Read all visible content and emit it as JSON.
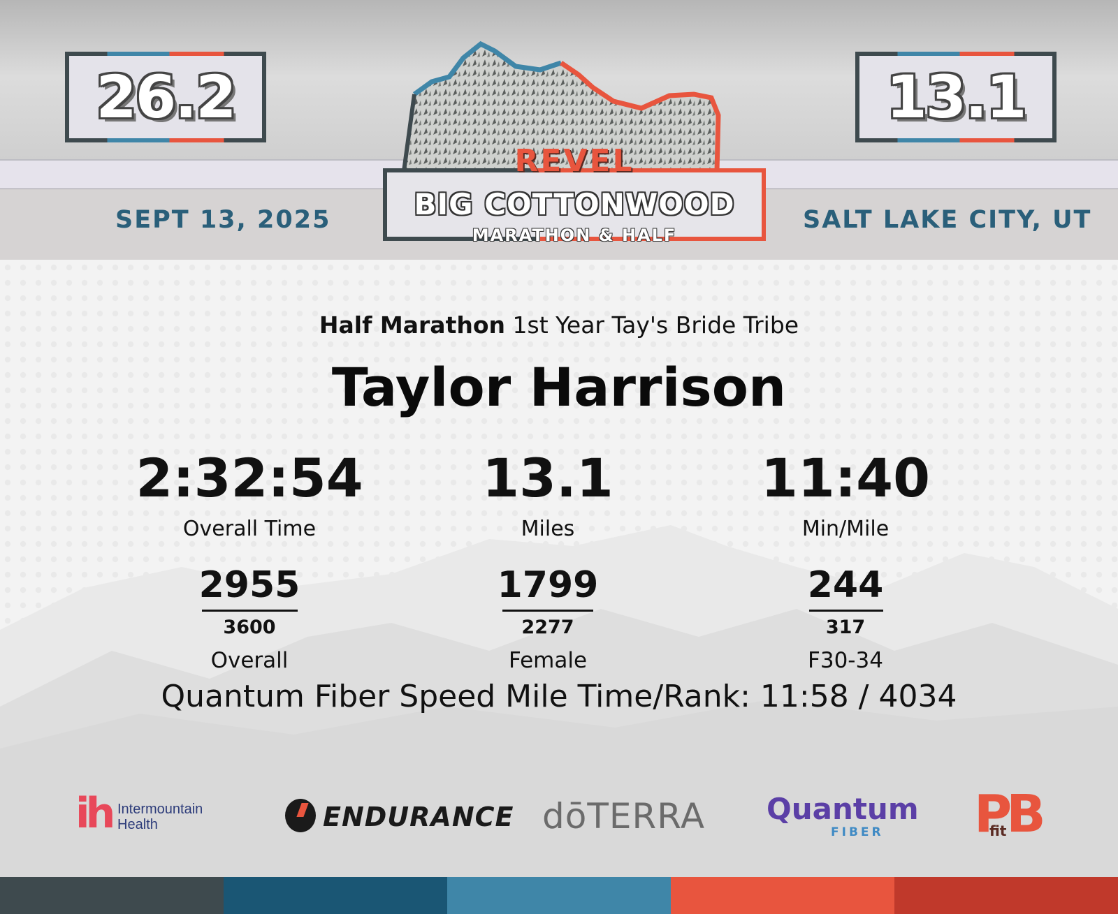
{
  "header": {
    "badge_left": "26.2",
    "badge_right": "13.1",
    "date": "SEPT 13, 2025",
    "location": "SALT LAKE CITY, UT"
  },
  "logo": {
    "brand": "REVEL",
    "race_name": "BIG COTTONWOOD",
    "subtitle": "MARATHON & HALF"
  },
  "result": {
    "event": "Half Marathon",
    "team": "1st Year Tay's Bride Tribe",
    "runner_name": "Taylor Harrison",
    "stats": [
      {
        "value": "2:32:54",
        "label": "Overall Time"
      },
      {
        "value": "13.1",
        "label": "Miles"
      },
      {
        "value": "11:40",
        "label": "Min/Mile"
      }
    ],
    "ranks": [
      {
        "place": "2955",
        "total": "3600",
        "category": "Overall"
      },
      {
        "place": "1799",
        "total": "2277",
        "category": "Female"
      },
      {
        "place": "244",
        "total": "317",
        "category": "F30-34"
      }
    ],
    "speed_mile": "Quantum Fiber Speed Mile Time/Rank: 11:58 / 4034"
  },
  "sponsors": {
    "intermountain_mark": "ih",
    "intermountain_line1": "Intermountain",
    "intermountain_line2": "Health",
    "gatorade": "ENDURANCE",
    "doterra": "dōTERRA",
    "quantum": "Quantum",
    "quantum_sub": "FIBER",
    "pb": "PB",
    "pb_fit": "fit"
  },
  "colors": {
    "teal_text": "#2a5f7a",
    "accent_red": "#e8553e",
    "accent_blue": "#3f86a8",
    "dark_slate": "#3e4a4e",
    "navy": "#1a5674",
    "dark_red": "#c0392b"
  }
}
